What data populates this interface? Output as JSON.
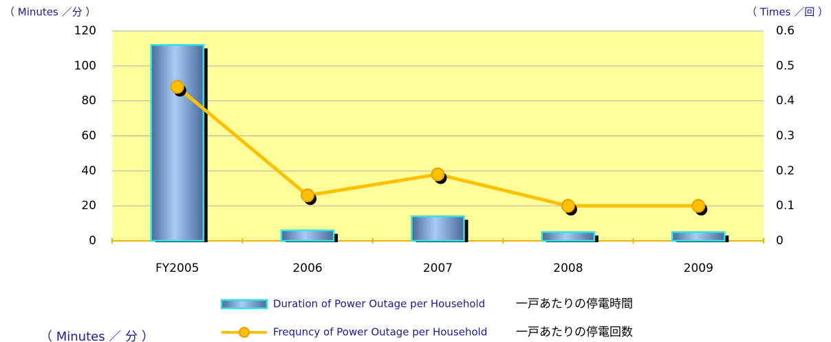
{
  "chart_data": {
    "type": "bar_line",
    "y_label": "（ Minutes ／分 ）",
    "y2_label": "（ Times ／回 ）",
    "categories": [
      "FY2005",
      "2006",
      "2007",
      "2008",
      "2009"
    ],
    "series": [
      {
        "name": "Duration of Power Outage per Household",
        "name_ja": "一戸あたりの停電時間",
        "type": "bar",
        "color": "#8fb8f0",
        "values": [
          112,
          6,
          14,
          5,
          5
        ]
      },
      {
        "name": "Frequncy of Power Outage per Household",
        "name_ja": "一戸あたりの停電回数",
        "type": "line",
        "axis": "y2",
        "color": "#ffc000",
        "values": [
          0.44,
          0.13,
          0.19,
          0.1,
          0.1
        ]
      }
    ],
    "ylim": [
      0,
      120
    ],
    "yticks": [
      0,
      20,
      40,
      60,
      80,
      100,
      120
    ],
    "y2lim": [
      0,
      0.6
    ],
    "y2ticks": [
      0,
      0.1,
      0.2,
      0.3,
      0.4,
      0.5,
      0.6
    ],
    "grid": true,
    "footnote": "（ Minutes ／ 分 ）"
  }
}
